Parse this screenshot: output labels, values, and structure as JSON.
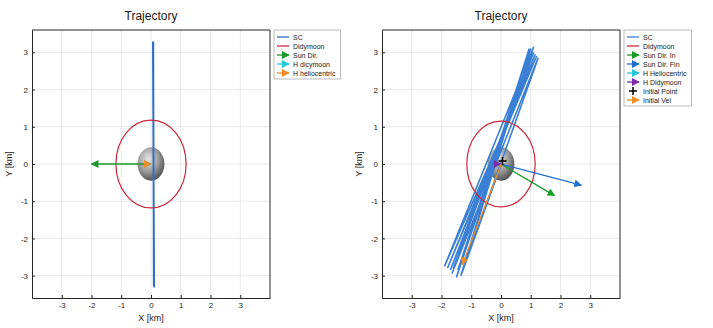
{
  "chart_data": [
    {
      "type": "line",
      "title": "Trajectory",
      "x_label": "X [km]",
      "y_label": "Y [km]",
      "xlim": [
        -4,
        4
      ],
      "ylim": [
        -3.6,
        3.6
      ],
      "xticks": [
        -3,
        -2,
        -1,
        0,
        1,
        2,
        3
      ],
      "yticks": [
        -3,
        -2,
        -1,
        0,
        1,
        2,
        3
      ],
      "grid": true,
      "legend": "northeastoutside",
      "body_radius": 0.45,
      "series": [
        {
          "name": "SC",
          "type": "line",
          "color": "#2f6fc4",
          "x": [
            0.08,
            0.1,
            0.06,
            0.11,
            0.07,
            0.09
          ],
          "y": [
            3.3,
            -3.3,
            3.28,
            -3.32,
            3.25,
            -3.28
          ]
        },
        {
          "name": "Didymoon",
          "type": "circle",
          "color": "#c8283c",
          "radius": 1.18
        },
        {
          "name": "Sun Dir.",
          "type": "arrow",
          "color": "#1a9a2a",
          "x": [
            0,
            -2
          ],
          "y": [
            0,
            0
          ]
        },
        {
          "name": "H dicymoon",
          "type": "arrow",
          "color": "#22c8d8",
          "x": [
            0,
            0
          ],
          "y": [
            0,
            0
          ]
        },
        {
          "name": "H heliocentric",
          "type": "arrow",
          "color": "#f08c28",
          "x": [
            0,
            0
          ],
          "y": [
            0,
            0
          ]
        }
      ]
    },
    {
      "type": "line",
      "title": "Trajectory",
      "x_label": "X [km]",
      "y_label": "Y [km]",
      "xlim": [
        -4,
        4
      ],
      "ylim": [
        -3.6,
        3.6
      ],
      "xticks": [
        -3,
        -2,
        -1,
        0,
        1,
        2,
        3
      ],
      "yticks": [
        -3,
        -2,
        -1,
        0,
        1,
        2,
        3
      ],
      "grid": true,
      "legend": "northeastoutside",
      "body_radius": 0.45,
      "series": [
        {
          "name": "SC",
          "type": "line",
          "color": "#3b7fd4",
          "x": [
            0.05,
            -1.3,
            1.0,
            -1.45,
            1.05,
            -1.6,
            1.1,
            -1.7,
            1.15,
            -1.8,
            1.2,
            -1.9,
            1.1,
            -1.5,
            0.95,
            -1.35,
            1.25,
            -1.65
          ],
          "y": [
            0.08,
            -2.9,
            3.1,
            -2.85,
            3.05,
            -2.8,
            3.0,
            -2.85,
            2.95,
            -2.8,
            2.9,
            -2.75,
            3.15,
            -3.05,
            3.1,
            -3.0,
            2.85,
            -2.95
          ]
        },
        {
          "name": "Didymoon",
          "type": "circle",
          "color": "#c8283c",
          "radius": 1.15
        },
        {
          "name": "Sun Dir. In",
          "type": "arrow",
          "color": "#1a9a2a",
          "x": [
            0,
            1.8
          ],
          "y": [
            0,
            -0.85
          ]
        },
        {
          "name": "Sun Dir. Fin",
          "type": "arrow",
          "color": "#1f6fd0",
          "x": [
            0,
            2.7
          ],
          "y": [
            0,
            -0.57
          ]
        },
        {
          "name": "H Heliocentric",
          "type": "arrow",
          "color": "#22c8d8",
          "x": [
            0,
            0
          ],
          "y": [
            0,
            0
          ]
        },
        {
          "name": "H Didymoon",
          "type": "arrow",
          "color": "#7a2ca8",
          "x": [
            0,
            0
          ],
          "y": [
            0,
            0
          ]
        },
        {
          "name": "Initial Point",
          "type": "scatter",
          "marker": "plus",
          "color": "#000000",
          "x": [
            0.05
          ],
          "y": [
            0.08
          ]
        },
        {
          "name": "Initial Vel",
          "type": "arrow",
          "color": "#f08c28",
          "x": [
            0.05,
            -1.3
          ],
          "y": [
            0.08,
            -2.7
          ]
        }
      ]
    }
  ]
}
